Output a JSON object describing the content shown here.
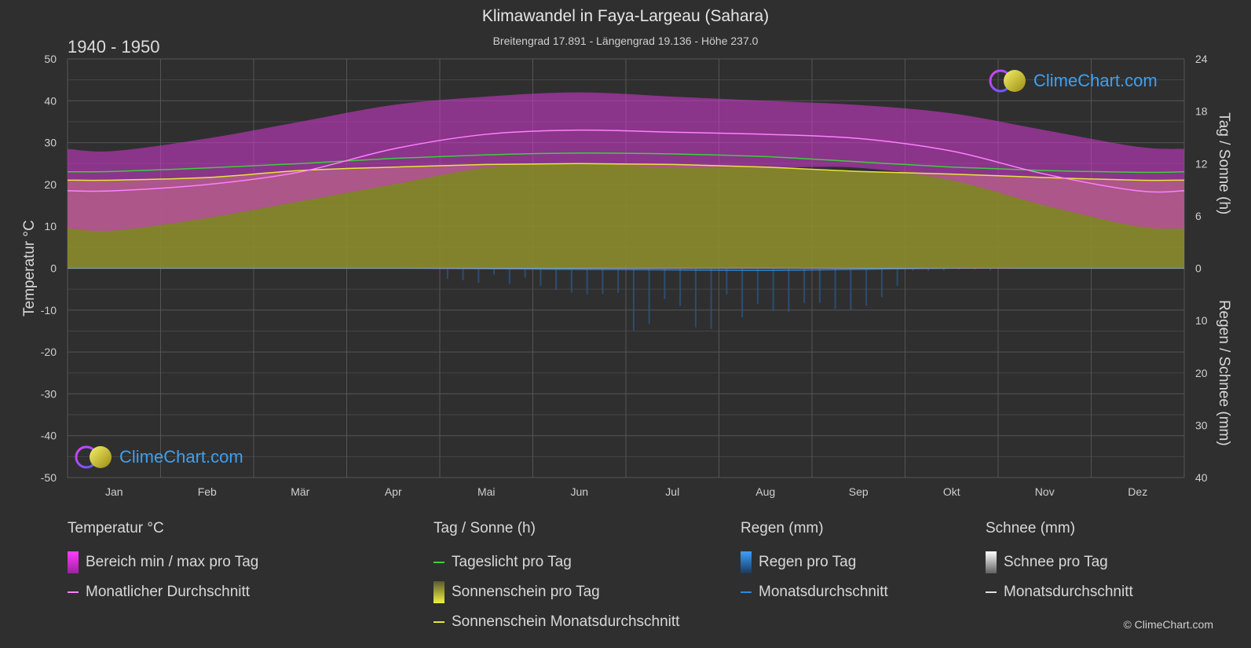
{
  "header": {
    "title": "Klimawandel in Faya-Largeau (Sahara)",
    "subtitle": "Breitengrad 17.891 - Längengrad 19.136 - Höhe 237.0",
    "period": "1940 - 1950"
  },
  "logo": {
    "text": "ClimeChart.com"
  },
  "copyright": "© ClimeChart.com",
  "legend": {
    "temp": {
      "title": "Temperatur °C",
      "range": "Bereich min / max pro Tag",
      "avg": "Monatlicher Durchschnitt"
    },
    "sun": {
      "title": "Tag / Sonne (h)",
      "daylight": "Tageslicht pro Tag",
      "sunshine": "Sonnenschein pro Tag",
      "sunavg": "Sonnenschein Monatsdurchschnitt"
    },
    "rain": {
      "title": "Regen (mm)",
      "perday": "Regen pro Tag",
      "avg": "Monatsdurchschnitt"
    },
    "snow": {
      "title": "Schnee (mm)",
      "perday": "Schnee pro Tag",
      "avg": "Monatsdurchschnitt"
    }
  },
  "colors": {
    "background": "#2f2f2f",
    "temp_range": "#c838c8",
    "temp_avg": "#ff80ff",
    "daylight": "#3ad03a",
    "sunshine_fill": "#8c8c2c",
    "sunshine_avg": "#e6e63c",
    "rain": "#2a7ad0",
    "snow": "#d0d0d0"
  },
  "chart_data": {
    "type": "area",
    "months": [
      "Jan",
      "Feb",
      "Mär",
      "Apr",
      "Mai",
      "Jun",
      "Jul",
      "Aug",
      "Sep",
      "Okt",
      "Nov",
      "Dez"
    ],
    "y_left": {
      "label": "Temperatur °C",
      "min": -50,
      "max": 50,
      "ticks": [
        50,
        40,
        30,
        20,
        10,
        0,
        -10,
        -20,
        -30,
        -40,
        -50
      ]
    },
    "y_right_top": {
      "label": "Tag / Sonne (h)",
      "min": 0,
      "max": 24,
      "ticks": [
        24,
        18,
        12,
        6,
        0
      ]
    },
    "y_right_bottom": {
      "label": "Regen / Schnee (mm)",
      "min": 0,
      "max": 40,
      "ticks": [
        0,
        10,
        20,
        30,
        40
      ]
    },
    "series": [
      {
        "name": "Monatlicher Durchschnitt",
        "unit": "°C",
        "values": [
          18.5,
          20.0,
          23.0,
          28.5,
          32.0,
          33.0,
          32.5,
          32.0,
          31.0,
          28.0,
          22.5,
          18.5
        ]
      },
      {
        "name": "Bereich min / max pro Tag (max)",
        "unit": "°C",
        "values": [
          28,
          31,
          35,
          39,
          41,
          42,
          41,
          40,
          39,
          37,
          33,
          29
        ]
      },
      {
        "name": "Bereich min / max pro Tag (min)",
        "unit": "°C",
        "values": [
          9,
          12,
          16,
          20,
          24,
          25,
          24,
          24,
          24,
          21,
          15,
          10
        ]
      },
      {
        "name": "Tageslicht pro Tag",
        "unit": "h",
        "values": [
          11.1,
          11.5,
          12.0,
          12.6,
          13.0,
          13.2,
          13.1,
          12.8,
          12.2,
          11.6,
          11.2,
          11.0
        ]
      },
      {
        "name": "Sonnenschein pro Tag",
        "unit": "h",
        "values": [
          10.1,
          10.4,
          11.2,
          11.6,
          11.9,
          12.0,
          11.9,
          11.6,
          11.1,
          10.8,
          10.4,
          10.1
        ]
      },
      {
        "name": "Sonnenschein Monatsdurchschnitt",
        "unit": "h",
        "values": [
          10.1,
          10.4,
          11.2,
          11.6,
          11.9,
          12.0,
          11.9,
          11.6,
          11.1,
          10.8,
          10.4,
          10.1
        ]
      },
      {
        "name": "Regen Monatsdurchschnitt",
        "unit": "mm",
        "values": [
          0.0,
          0.0,
          0.0,
          0.0,
          0.1,
          0.2,
          0.3,
          0.4,
          0.2,
          0.0,
          0.0,
          0.0
        ]
      },
      {
        "name": "Regen pro Tag (max)",
        "unit": "mm",
        "values": [
          0.0,
          0.0,
          0.0,
          0.0,
          3.0,
          5.0,
          12.0,
          10.0,
          8.0,
          0.5,
          0.0,
          0.0
        ]
      }
    ]
  }
}
